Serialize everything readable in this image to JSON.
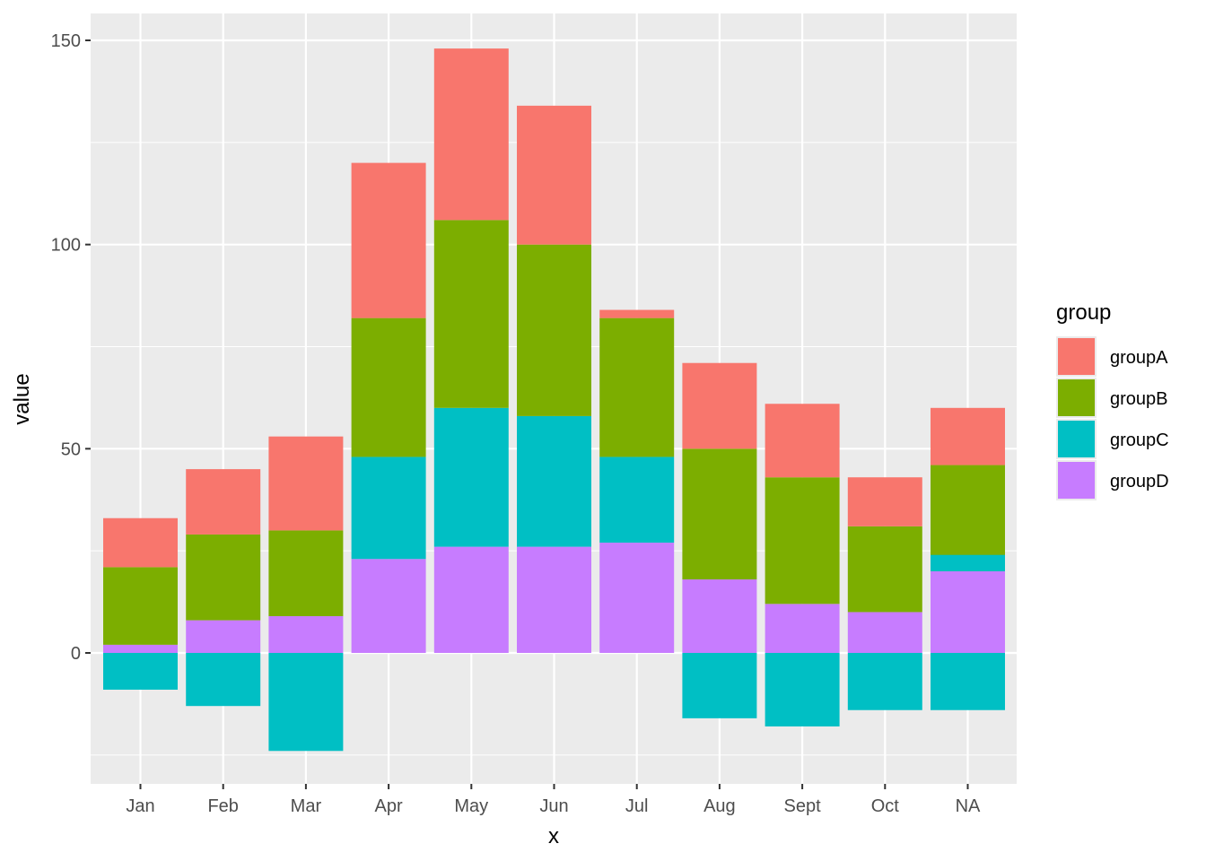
{
  "chart_data": {
    "type": "bar",
    "stacked": true,
    "xlabel": "x",
    "ylabel": "value",
    "categories": [
      "Jan",
      "Feb",
      "Mar",
      "Apr",
      "May",
      "Jun",
      "Jul",
      "Aug",
      "Sept",
      "Oct",
      "NA"
    ],
    "ylim": [
      -32,
      150
    ],
    "yticks": [
      0,
      50,
      100,
      150
    ],
    "grid": true,
    "legend": {
      "title": "group",
      "position": "right"
    },
    "series": [
      {
        "name": "groupA",
        "color": "#F8766D",
        "values": [
          12,
          16,
          23,
          38,
          42,
          34,
          2,
          21,
          18,
          12,
          14
        ]
      },
      {
        "name": "groupB",
        "color": "#7CAE00",
        "values": [
          19,
          21,
          21,
          34,
          46,
          42,
          34,
          32,
          31,
          21,
          26
        ]
      },
      {
        "name": "groupC",
        "color": "#00BFC4",
        "values": [
          -9,
          -13,
          -24,
          25,
          34,
          32,
          21,
          -16,
          -18,
          -14,
          -14
        ]
      },
      {
        "name": "groupD",
        "color": "#C77CFF",
        "values": [
          2,
          8,
          9,
          23,
          26,
          26,
          27,
          18,
          12,
          10,
          20
        ]
      }
    ],
    "extra_positive": [
      {
        "category": "NA",
        "series": "groupC",
        "value": 4
      }
    ]
  }
}
